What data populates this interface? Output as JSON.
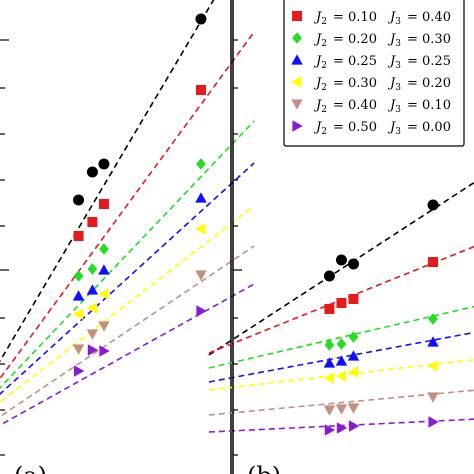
{
  "chart_data": [
    {
      "panel_label": "(a)",
      "type": "scatter",
      "fit_lines": "dashed",
      "series": [
        {
          "marker": "circle",
          "color": "#000000",
          "points": [
            [
              0.34,
              200
            ],
            [
              0.4,
              172
            ],
            [
              0.45,
              164
            ],
            [
              0.87,
              19
            ]
          ],
          "fit": [
            [
              -0.1,
              400
            ],
            [
              0.95,
              -10
            ]
          ]
        },
        {
          "marker": "square",
          "color": "#e41a1c",
          "points": [
            [
              0.34,
              236
            ],
            [
              0.4,
              222
            ],
            [
              0.45,
              204
            ],
            [
              0.87,
              90
            ]
          ],
          "fit": [
            [
              -0.1,
              410
            ],
            [
              1.1,
              32
            ]
          ]
        },
        {
          "marker": "diamond",
          "color": "#22dd22",
          "points": [
            [
              0.34,
              276
            ],
            [
              0.4,
              269
            ],
            [
              0.45,
              249
            ],
            [
              0.87,
              164
            ]
          ],
          "fit": [
            [
              -0.1,
              412
            ],
            [
              1.1,
              121
            ]
          ]
        },
        {
          "marker": "triangle-up",
          "color": "#1010ff",
          "points": [
            [
              0.34,
              296
            ],
            [
              0.4,
              290
            ],
            [
              0.45,
              270
            ],
            [
              0.87,
              198
            ]
          ],
          "fit": [
            [
              -0.1,
              415
            ],
            [
              1.1,
              163
            ]
          ]
        },
        {
          "marker": "triangle-left",
          "color": "#ffff00",
          "points": [
            [
              0.34,
              314
            ],
            [
              0.4,
              308
            ],
            [
              0.45,
              294
            ],
            [
              0.87,
              229
            ]
          ],
          "fit": [
            [
              -0.1,
              420
            ],
            [
              1.1,
              206
            ]
          ]
        },
        {
          "marker": "triangle-down",
          "color": "#c09080",
          "points": [
            [
              0.34,
              349
            ],
            [
              0.4,
              334
            ],
            [
              0.45,
              326
            ],
            [
              0.87,
              275
            ]
          ],
          "fit": [
            [
              -0.1,
              432
            ],
            [
              1.1,
              246
            ]
          ]
        },
        {
          "marker": "triangle-right",
          "color": "#8a1bd3",
          "points": [
            [
              0.34,
              371
            ],
            [
              0.4,
              350
            ],
            [
              0.45,
              351
            ],
            [
              0.87,
              311
            ]
          ],
          "fit": [
            [
              -0.1,
              438
            ],
            [
              1.1,
              284
            ]
          ]
        }
      ]
    },
    {
      "panel_label": "(b)",
      "type": "scatter",
      "fit_lines": "dashed",
      "legend_position": "upper-right",
      "legend": [
        {
          "marker": "square",
          "color": "#e41a1c",
          "j2": "0.10",
          "j3": "0.40"
        },
        {
          "marker": "diamond",
          "color": "#22dd22",
          "j2": "0.20",
          "j3": "0.30"
        },
        {
          "marker": "triangle-up",
          "color": "#1010ff",
          "j2": "0.25",
          "j3": "0.25"
        },
        {
          "marker": "triangle-left",
          "color": "#ffff00",
          "j2": "0.30",
          "j3": "0.20"
        },
        {
          "marker": "triangle-down",
          "color": "#c09080",
          "j2": "0.40",
          "j3": "0.10"
        },
        {
          "marker": "triangle-right",
          "color": "#8a1bd3",
          "j2": "0.50",
          "j3": "0.00"
        }
      ],
      "series": [
        {
          "marker": "circle",
          "color": "#000000",
          "points": [
            [
              0.4,
              276
            ],
            [
              0.45,
              260
            ],
            [
              0.5,
              264
            ],
            [
              0.83,
              205
            ]
          ],
          "fit": [
            [
              -0.1,
              355
            ],
            [
              1.1,
              167
            ]
          ]
        },
        {
          "marker": "square",
          "color": "#e41a1c",
          "points": [
            [
              0.4,
              309
            ],
            [
              0.45,
              303
            ],
            [
              0.5,
              299
            ],
            [
              0.83,
              262
            ]
          ],
          "fit": [
            [
              -0.1,
              353
            ],
            [
              1.1,
              237
            ]
          ]
        },
        {
          "marker": "diamond",
          "color": "#22dd22",
          "points": [
            [
              0.4,
              345
            ],
            [
              0.45,
              344
            ],
            [
              0.5,
              337
            ],
            [
              0.83,
              319
            ]
          ],
          "fit": [
            [
              -0.1,
              368
            ],
            [
              1.1,
              301
            ]
          ]
        },
        {
          "marker": "triangle-up",
          "color": "#1010ff",
          "points": [
            [
              0.4,
              363
            ],
            [
              0.45,
              361
            ],
            [
              0.5,
              356
            ],
            [
              0.83,
              342
            ]
          ],
          "fit": [
            [
              -0.1,
              382
            ],
            [
              1.1,
              328
            ]
          ]
        },
        {
          "marker": "triangle-left",
          "color": "#ffff00",
          "points": [
            [
              0.4,
              378
            ],
            [
              0.45,
              376
            ],
            [
              0.5,
              372
            ],
            [
              0.83,
              366
            ]
          ],
          "fit": [
            [
              -0.1,
              390
            ],
            [
              1.1,
              357
            ]
          ]
        },
        {
          "marker": "triangle-down",
          "color": "#c09080",
          "points": [
            [
              0.4,
              410
            ],
            [
              0.45,
              409
            ],
            [
              0.5,
              408
            ],
            [
              0.83,
              397
            ]
          ],
          "fit": [
            [
              -0.1,
              415
            ],
            [
              1.1,
              388
            ]
          ]
        },
        {
          "marker": "triangle-right",
          "color": "#8a1bd3",
          "points": [
            [
              0.4,
              430
            ],
            [
              0.45,
              428
            ],
            [
              0.5,
              426
            ],
            [
              0.83,
              422
            ]
          ],
          "fit": [
            [
              -0.1,
              432
            ],
            [
              1.1,
              418
            ]
          ]
        }
      ]
    }
  ]
}
